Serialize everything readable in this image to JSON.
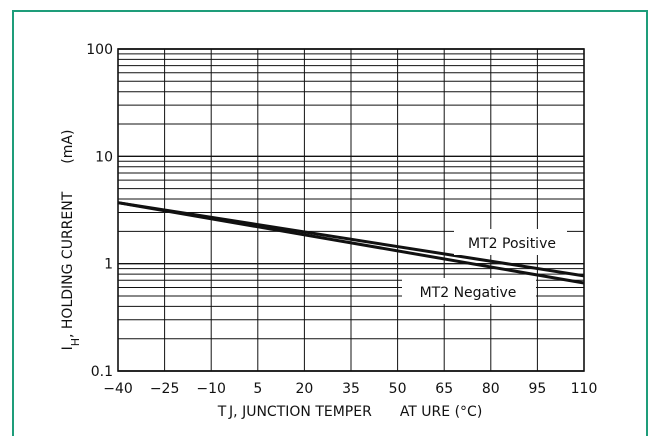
{
  "chart_data": {
    "type": "line",
    "x_tick_labels": [
      "−40",
      "−25",
      "−10",
      "5",
      "20",
      "35",
      "50",
      "65",
      "80",
      "95",
      "110"
    ],
    "x": [
      -40,
      -25,
      -10,
      5,
      20,
      35,
      50,
      65,
      80,
      95,
      110
    ],
    "xlim": [
      -40,
      110
    ],
    "ylim": [
      0.1,
      100
    ],
    "y_scale": "log",
    "y_tick_labels": [
      "100",
      "10",
      "1",
      "0.1"
    ],
    "y_ticks": [
      100,
      10,
      1,
      0.1
    ],
    "xlabel": "T J, JUNCTION TEMPER  AT URE  (°C)",
    "ylabel_main": "I",
    "ylabel_sub": "H",
    "ylabel_rest": ", HOLDING CURRENT",
    "ylabel_unit": "(mA)",
    "grid": true,
    "series": [
      {
        "name": "MT2 Positive",
        "x": [
          -40,
          110
        ],
        "values": [
          3.7,
          0.77
        ]
      },
      {
        "name": "MT2 Negative",
        "x": [
          -40,
          110
        ],
        "values": [
          3.7,
          0.66
        ]
      }
    ],
    "colors": {
      "frame": "#1e9d7a",
      "line": "#111111",
      "grid": "#111111"
    }
  }
}
